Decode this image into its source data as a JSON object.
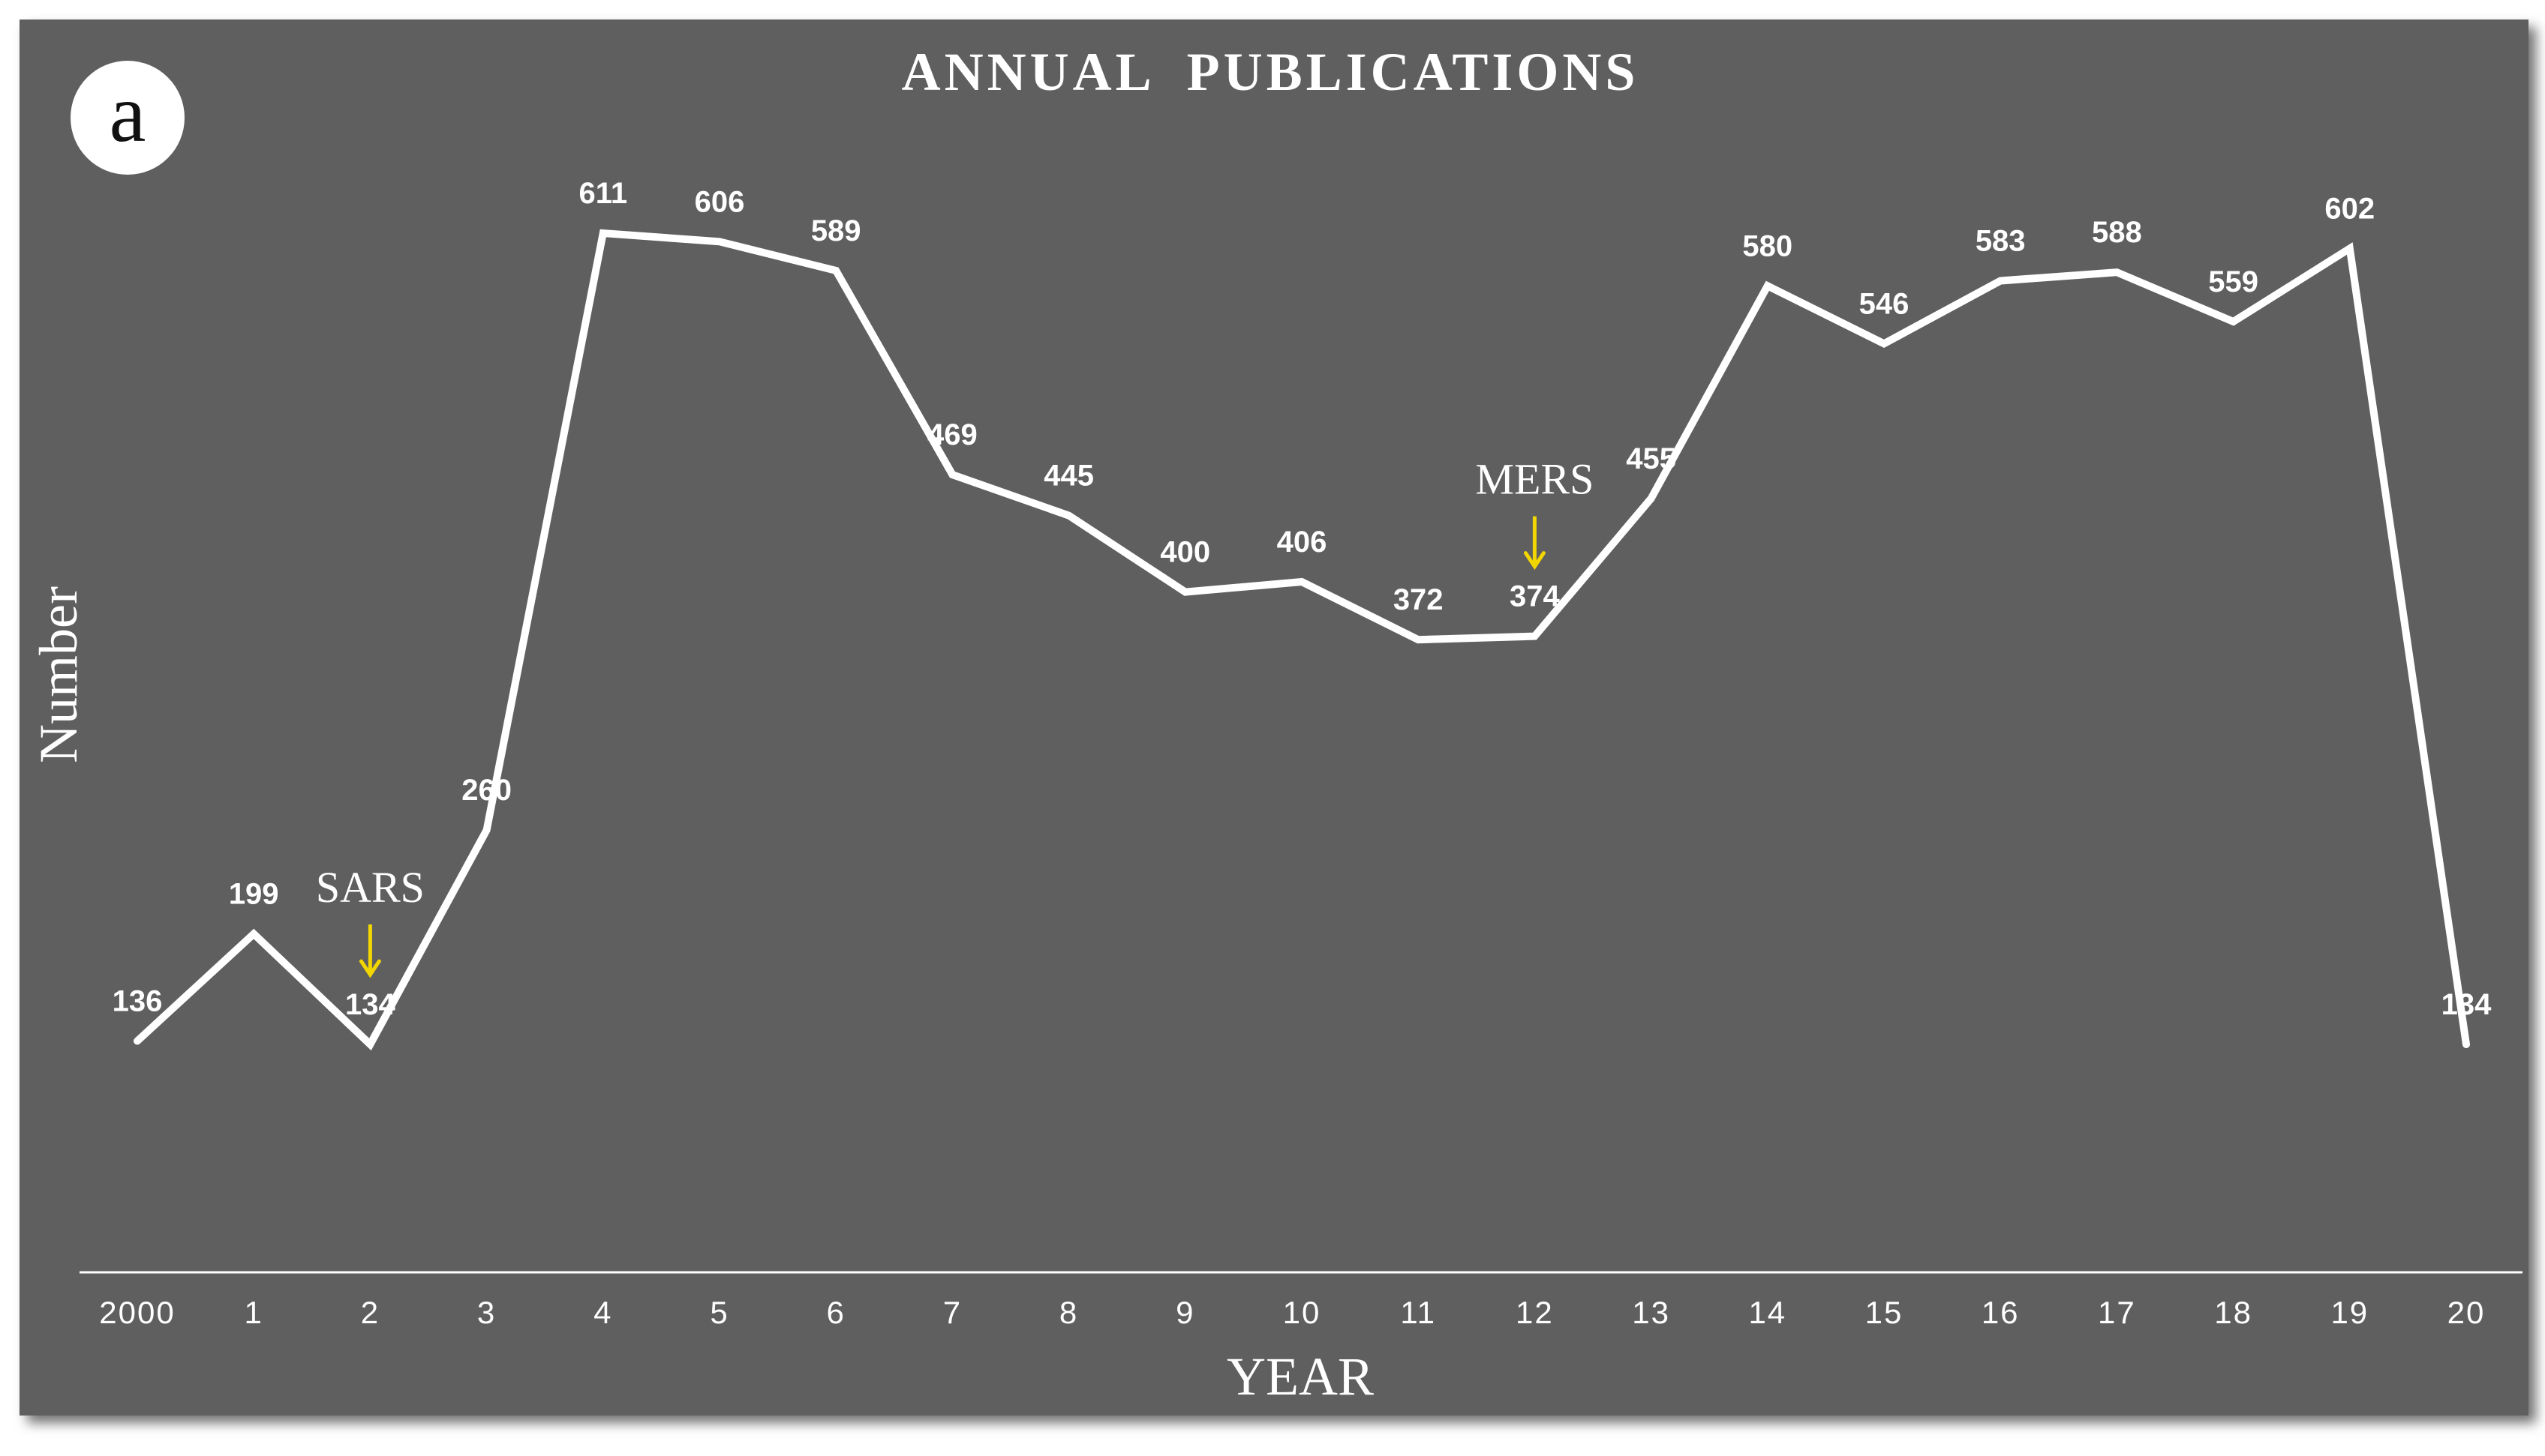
{
  "panel_label": "a",
  "chart_data": {
    "type": "line",
    "title": "ANNUAL  PUBLICATIONS",
    "xlabel": "YEAR",
    "ylabel": "Number",
    "categories": [
      "2000",
      "1",
      "2",
      "3",
      "4",
      "5",
      "6",
      "7",
      "8",
      "9",
      "10",
      "11",
      "12",
      "13",
      "14",
      "15",
      "16",
      "17",
      "18",
      "19",
      "20"
    ],
    "values": [
      136,
      199,
      134,
      260,
      611,
      606,
      589,
      469,
      445,
      400,
      406,
      372,
      374,
      455,
      580,
      546,
      583,
      588,
      559,
      602,
      134
    ],
    "value_labels": [
      "136",
      "199",
      "134",
      "260",
      "611",
      "606",
      "589",
      "469",
      "445",
      "400",
      "406",
      "372",
      "374",
      "455",
      "580",
      "546",
      "583",
      "588",
      "559",
      "602",
      "134"
    ],
    "ylim": [
      0,
      650
    ],
    "grid": "vertical drop lines at each point",
    "legend": "none",
    "annotations": [
      {
        "text": "SARS",
        "category": "2",
        "arrow": "down"
      },
      {
        "text": "MERS",
        "category": "12",
        "arrow": "down"
      }
    ]
  },
  "colors": {
    "panel_background": "#5e5e5e",
    "line": "#ffffff",
    "text": "#ffffff",
    "arrow": "#f2d600",
    "badge_fill": "#ffffff",
    "badge_text": "#111111"
  }
}
